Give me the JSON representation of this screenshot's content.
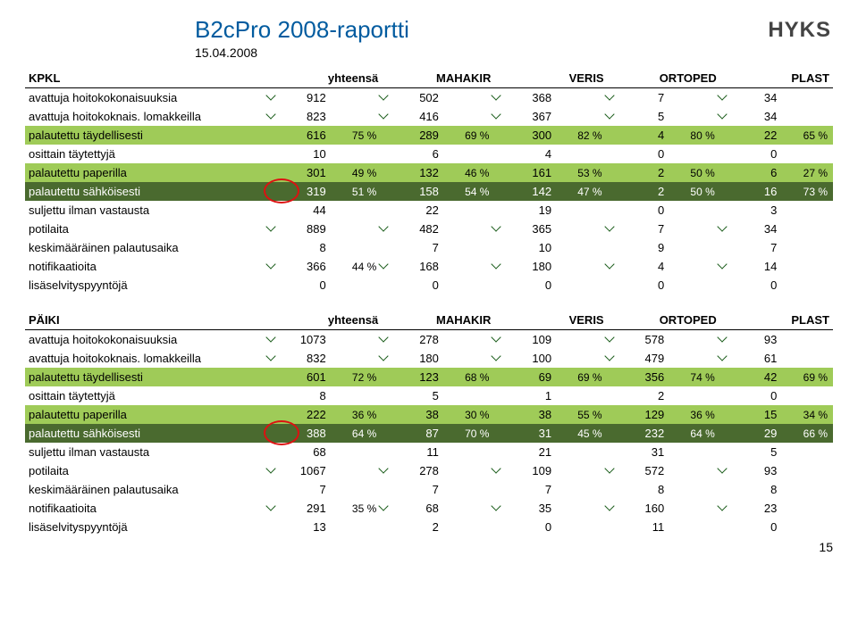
{
  "title": "B2cPro 2008-raportti",
  "date": "15.04.2008",
  "logo": "HYKS",
  "page_number": "15",
  "colors": {
    "title": "#005b9f",
    "row_green": "#9fcb58",
    "row_dark": "#4a6a2f",
    "circle": "#d11"
  },
  "headers": [
    "yhteensä",
    "MAHAKIR",
    "VERIS",
    "ORTOPED",
    "PLAST"
  ],
  "t1": {
    "name": "KPKL",
    "rows": [
      {
        "style": "",
        "label": "avattuja hoitokokonaisuuksia",
        "marks": true,
        "cells": [
          [
            "912",
            ""
          ],
          [
            "502",
            ""
          ],
          [
            "368",
            ""
          ],
          [
            "7",
            ""
          ],
          [
            "34",
            ""
          ]
        ]
      },
      {
        "style": "",
        "label": "avattuja hoitokoknais. lomakkeilla",
        "marks": true,
        "cells": [
          [
            "823",
            ""
          ],
          [
            "416",
            ""
          ],
          [
            "367",
            ""
          ],
          [
            "5",
            ""
          ],
          [
            "34",
            ""
          ]
        ]
      },
      {
        "style": "green",
        "label": "palautettu täydellisesti",
        "marks": false,
        "cells": [
          [
            "616",
            "75 %"
          ],
          [
            "289",
            "69 %"
          ],
          [
            "300",
            "82 %"
          ],
          [
            "4",
            "80 %"
          ],
          [
            "22",
            "65 %"
          ]
        ]
      },
      {
        "style": "",
        "label": "osittain täytettyjä",
        "marks": false,
        "cells": [
          [
            "10",
            ""
          ],
          [
            "6",
            ""
          ],
          [
            "4",
            ""
          ],
          [
            "0",
            ""
          ],
          [
            "0",
            ""
          ]
        ]
      },
      {
        "style": "green",
        "label": "palautettu paperilla",
        "marks": false,
        "cells": [
          [
            "301",
            "49 %"
          ],
          [
            "132",
            "46 %"
          ],
          [
            "161",
            "53 %"
          ],
          [
            "2",
            "50 %"
          ],
          [
            "6",
            "27 %"
          ]
        ]
      },
      {
        "style": "dark",
        "label": "palautettu sähköisesti",
        "marks": false,
        "circle": 0,
        "cells": [
          [
            "319",
            "51 %"
          ],
          [
            "158",
            "54 %"
          ],
          [
            "142",
            "47 %"
          ],
          [
            "2",
            "50 %"
          ],
          [
            "16",
            "73 %"
          ]
        ]
      },
      {
        "style": "",
        "label": "suljettu ilman vastausta",
        "marks": false,
        "cells": [
          [
            "44",
            ""
          ],
          [
            "22",
            ""
          ],
          [
            "19",
            ""
          ],
          [
            "0",
            ""
          ],
          [
            "3",
            ""
          ]
        ]
      },
      {
        "style": "",
        "label": "potilaita",
        "marks": true,
        "cells": [
          [
            "889",
            ""
          ],
          [
            "482",
            ""
          ],
          [
            "365",
            ""
          ],
          [
            "7",
            ""
          ],
          [
            "34",
            ""
          ]
        ]
      },
      {
        "style": "",
        "label": "keskimääräinen palautusaika",
        "marks": false,
        "cells": [
          [
            "8",
            ""
          ],
          [
            "7",
            ""
          ],
          [
            "10",
            ""
          ],
          [
            "9",
            ""
          ],
          [
            "7",
            ""
          ]
        ]
      },
      {
        "style": "",
        "label": "notifikaatioita",
        "marks": true,
        "cells": [
          [
            "366",
            "44 %"
          ],
          [
            "168",
            ""
          ],
          [
            "180",
            ""
          ],
          [
            "4",
            ""
          ],
          [
            "14",
            ""
          ]
        ]
      },
      {
        "style": "",
        "label": "lisäselvityspyyntöjä",
        "marks": false,
        "cells": [
          [
            "0",
            ""
          ],
          [
            "0",
            ""
          ],
          [
            "0",
            ""
          ],
          [
            "0",
            ""
          ],
          [
            "0",
            ""
          ]
        ]
      }
    ]
  },
  "t2": {
    "name": "PÄIKI",
    "rows": [
      {
        "style": "",
        "label": "avattuja hoitokokonaisuuksia",
        "marks": true,
        "cells": [
          [
            "1073",
            ""
          ],
          [
            "278",
            ""
          ],
          [
            "109",
            ""
          ],
          [
            "578",
            ""
          ],
          [
            "93",
            ""
          ]
        ]
      },
      {
        "style": "",
        "label": "avattuja hoitokoknais. lomakkeilla",
        "marks": true,
        "cells": [
          [
            "832",
            ""
          ],
          [
            "180",
            ""
          ],
          [
            "100",
            ""
          ],
          [
            "479",
            ""
          ],
          [
            "61",
            ""
          ]
        ]
      },
      {
        "style": "green",
        "label": "palautettu täydellisesti",
        "marks": false,
        "cells": [
          [
            "601",
            "72 %"
          ],
          [
            "123",
            "68 %"
          ],
          [
            "69",
            "69 %"
          ],
          [
            "356",
            "74 %"
          ],
          [
            "42",
            "69 %"
          ]
        ]
      },
      {
        "style": "",
        "label": "osittain täytettyjä",
        "marks": false,
        "cells": [
          [
            "8",
            ""
          ],
          [
            "5",
            ""
          ],
          [
            "1",
            ""
          ],
          [
            "2",
            ""
          ],
          [
            "0",
            ""
          ]
        ]
      },
      {
        "style": "green",
        "label": "palautettu paperilla",
        "marks": false,
        "cells": [
          [
            "222",
            "36 %"
          ],
          [
            "38",
            "30 %"
          ],
          [
            "38",
            "55 %"
          ],
          [
            "129",
            "36 %"
          ],
          [
            "15",
            "34 %"
          ]
        ]
      },
      {
        "style": "dark",
        "label": "palautettu sähköisesti",
        "marks": false,
        "circle": 0,
        "cells": [
          [
            "388",
            "64 %"
          ],
          [
            "87",
            "70 %"
          ],
          [
            "31",
            "45 %"
          ],
          [
            "232",
            "64 %"
          ],
          [
            "29",
            "66 %"
          ]
        ]
      },
      {
        "style": "",
        "label": "suljettu ilman vastausta",
        "marks": false,
        "cells": [
          [
            "68",
            ""
          ],
          [
            "11",
            ""
          ],
          [
            "21",
            ""
          ],
          [
            "31",
            ""
          ],
          [
            "5",
            ""
          ]
        ]
      },
      {
        "style": "",
        "label": "potilaita",
        "marks": true,
        "cells": [
          [
            "1067",
            ""
          ],
          [
            "278",
            ""
          ],
          [
            "109",
            ""
          ],
          [
            "572",
            ""
          ],
          [
            "93",
            ""
          ]
        ]
      },
      {
        "style": "",
        "label": "keskimääräinen palautusaika",
        "marks": false,
        "cells": [
          [
            "7",
            ""
          ],
          [
            "7",
            ""
          ],
          [
            "7",
            ""
          ],
          [
            "8",
            ""
          ],
          [
            "8",
            ""
          ]
        ]
      },
      {
        "style": "",
        "label": "notifikaatioita",
        "marks": true,
        "cells": [
          [
            "291",
            "35 %"
          ],
          [
            "68",
            ""
          ],
          [
            "35",
            ""
          ],
          [
            "160",
            ""
          ],
          [
            "23",
            ""
          ]
        ]
      },
      {
        "style": "",
        "label": "lisäselvityspyyntöjä",
        "marks": false,
        "cells": [
          [
            "13",
            ""
          ],
          [
            "2",
            ""
          ],
          [
            "0",
            ""
          ],
          [
            "11",
            ""
          ],
          [
            "0",
            ""
          ]
        ]
      }
    ]
  }
}
